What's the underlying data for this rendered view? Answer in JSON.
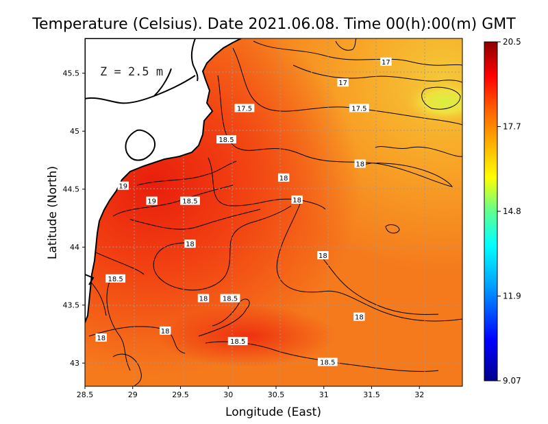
{
  "title": "Temperature (Celsius). Date 2021.06.08. Time 00(h):00(m) GMT",
  "depth_label": "Z = 2.5 m",
  "xlabel": "Longitude (East)",
  "ylabel": "Latitude (North)",
  "x_ticks": [
    "28.5",
    "29",
    "29.5",
    "30",
    "30.5",
    "31",
    "31.5",
    "32"
  ],
  "y_ticks": [
    "43",
    "43.5",
    "44",
    "44.5",
    "45",
    "45.5"
  ],
  "colorbar": {
    "ticks": [
      "20.5",
      "17.7",
      "14.8",
      "11.9",
      "9.07"
    ],
    "min": 9.07,
    "max": 20.5,
    "colors": [
      "#00008b",
      "#0000ff",
      "#00a0ff",
      "#00ffff",
      "#60ff90",
      "#ffff00",
      "#ffb000",
      "#ff6000",
      "#ff0000",
      "#8b0000"
    ]
  },
  "map": {
    "lon_range": [
      28.5,
      32.45
    ],
    "lat_range": [
      42.8,
      45.8
    ],
    "land_color": "#ffffff",
    "grid": "dotted",
    "water_colors": {
      "warm_coast": "#f02a10",
      "mid": "#f55a15",
      "offshore": "#f78a20",
      "cool": "#f8b030",
      "coolest": "#e8f030"
    }
  },
  "contour_labels": [
    {
      "text": "17",
      "lon": 31.65,
      "lat": 45.6
    },
    {
      "text": "17",
      "lon": 31.2,
      "lat": 45.42
    },
    {
      "text": "17.5",
      "lon": 30.17,
      "lat": 45.2
    },
    {
      "text": "17.5",
      "lon": 31.37,
      "lat": 45.2
    },
    {
      "text": "18.5",
      "lon": 29.98,
      "lat": 44.93
    },
    {
      "text": "18",
      "lon": 31.38,
      "lat": 44.72
    },
    {
      "text": "18",
      "lon": 30.58,
      "lat": 44.6
    },
    {
      "text": "18",
      "lon": 30.72,
      "lat": 44.41
    },
    {
      "text": "19",
      "lon": 28.9,
      "lat": 44.53
    },
    {
      "text": "19",
      "lon": 29.2,
      "lat": 44.4
    },
    {
      "text": "18.5",
      "lon": 29.6,
      "lat": 44.4
    },
    {
      "text": "18",
      "lon": 29.6,
      "lat": 44.03
    },
    {
      "text": "18",
      "lon": 30.99,
      "lat": 43.93
    },
    {
      "text": "18.5",
      "lon": 28.82,
      "lat": 43.73
    },
    {
      "text": "18",
      "lon": 29.74,
      "lat": 43.56
    },
    {
      "text": "18.5",
      "lon": 30.02,
      "lat": 43.56
    },
    {
      "text": "18",
      "lon": 31.37,
      "lat": 43.4
    },
    {
      "text": "18",
      "lon": 29.34,
      "lat": 43.28
    },
    {
      "text": "18",
      "lon": 28.67,
      "lat": 43.22
    },
    {
      "text": "18.5",
      "lon": 30.1,
      "lat": 43.19
    },
    {
      "text": "18.5",
      "lon": 31.04,
      "lat": 43.01
    }
  ]
}
